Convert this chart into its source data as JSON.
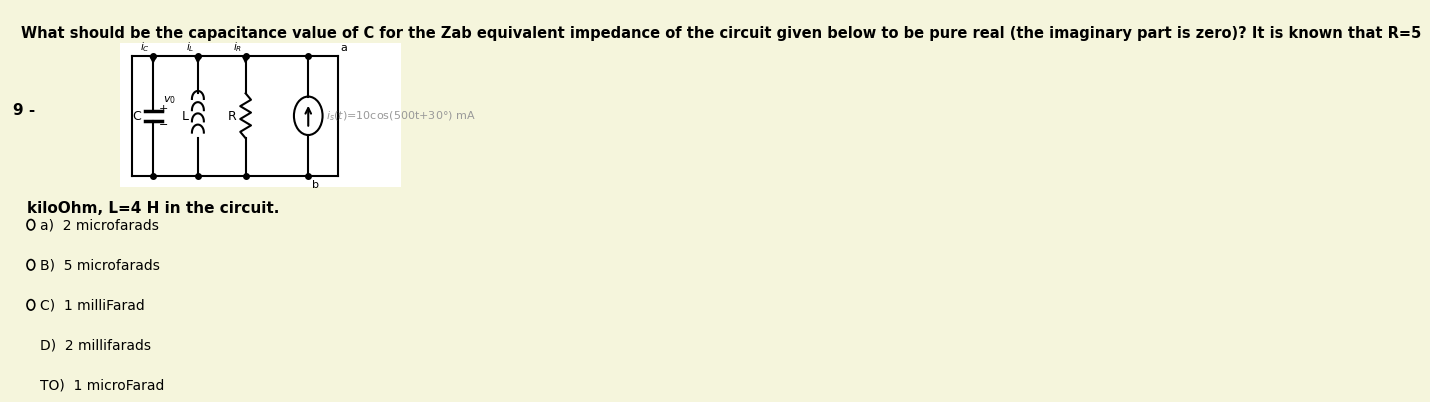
{
  "background_color": "#f5f5dc",
  "title_text": "What should be the capacitance value of C for the Zab equivalent impedance of the circuit given below to be pure real (the imaginary part is zero)? It is known that R=5",
  "title_fontsize": 10.5,
  "question_number": "9 -",
  "suffix_text": "kiloOhm, L=4 H in the circuit.",
  "options": [
    {
      "label": "a)",
      "text": "2 microfarads"
    },
    {
      "label": "B)",
      "text": "5 microfarads"
    },
    {
      "label": "C)",
      "text": "1 milliFarad"
    },
    {
      "label": "D)",
      "text": "2 millifarads"
    },
    {
      "label": "TO)",
      "text": "1 microFarad"
    }
  ],
  "circuit_bg": "#ffffff",
  "circuit_annotation_color": "#999999"
}
